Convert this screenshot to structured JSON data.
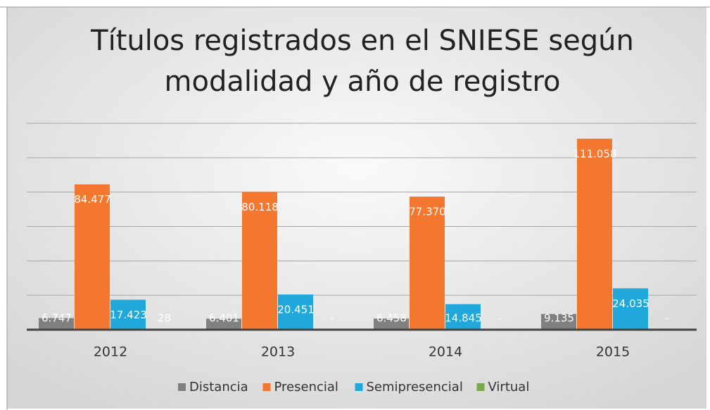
{
  "chart_data": {
    "type": "bar",
    "title": "Títulos registrados en el SNIESE según modalidad y año de registro",
    "categories": [
      "2012",
      "2013",
      "2014",
      "2015"
    ],
    "series": [
      {
        "name": "Distancia",
        "color": "#808080",
        "values": [
          6747,
          6401,
          6458,
          9135
        ],
        "value_labels": [
          "6.747",
          "6.401",
          "6.458",
          "9.135"
        ]
      },
      {
        "name": "Presencial",
        "color": "#f4772f",
        "values": [
          84477,
          80118,
          77370,
          111058
        ],
        "value_labels": [
          "84.477",
          "80.118",
          "77.370",
          "111.058"
        ]
      },
      {
        "name": "Semipresencial",
        "color": "#1fa8d9",
        "values": [
          17423,
          20451,
          14845,
          24035
        ],
        "value_labels": [
          "17.423",
          "20.451",
          "14.845",
          "24.035"
        ]
      },
      {
        "name": "Virtual",
        "color": "#79a94b",
        "values": [
          28,
          0,
          0,
          0
        ],
        "value_labels": [
          "28",
          "-",
          "-",
          "-"
        ]
      }
    ],
    "ylim": [
      0,
      120000
    ],
    "yticks": [
      0,
      20000,
      40000,
      60000,
      80000,
      100000,
      120000
    ],
    "grid": true,
    "legend": "bottom"
  }
}
